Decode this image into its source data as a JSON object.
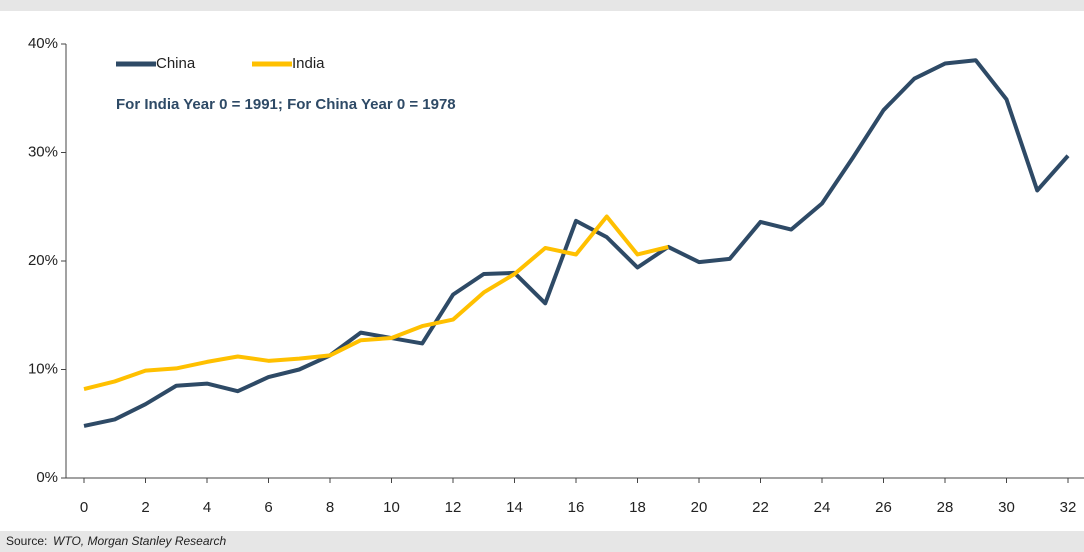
{
  "chart_data": {
    "type": "line",
    "annotation": "For India Year 0 = 1991; For China Year 0 = 1978",
    "source_label": "Source:",
    "source": "WTO, Morgan Stanley Research",
    "x": [
      0,
      1,
      2,
      3,
      4,
      5,
      6,
      7,
      8,
      9,
      10,
      11,
      12,
      13,
      14,
      15,
      16,
      17,
      18,
      19,
      20,
      21,
      22,
      23,
      24,
      25,
      26,
      27,
      28,
      29,
      30,
      31,
      32
    ],
    "series": [
      {
        "name": "China",
        "color": "#2e4a66",
        "values": [
          4.8,
          5.4,
          6.8,
          8.5,
          8.7,
          8.0,
          9.3,
          10.0,
          11.3,
          13.4,
          12.9,
          12.4,
          16.9,
          18.8,
          18.9,
          16.1,
          23.7,
          22.2,
          19.4,
          21.3,
          19.9,
          20.2,
          23.6,
          22.9,
          25.3,
          29.5,
          33.9,
          36.8,
          38.2,
          38.5,
          34.9,
          26.5,
          29.7
        ]
      },
      {
        "name": "India",
        "color": "#ffc000",
        "values": [
          8.2,
          8.9,
          9.9,
          10.1,
          10.7,
          11.2,
          10.8,
          11.0,
          11.3,
          12.7,
          12.9,
          14.0,
          14.6,
          17.1,
          18.8,
          21.2,
          20.6,
          24.1,
          20.6,
          21.3,
          null,
          null,
          null,
          null,
          null,
          null,
          null,
          null,
          null,
          null,
          null,
          null,
          null
        ]
      }
    ],
    "xlim": [
      0,
      32
    ],
    "xticks": [
      0,
      2,
      4,
      6,
      8,
      10,
      12,
      14,
      16,
      18,
      20,
      22,
      24,
      26,
      28,
      30,
      32
    ],
    "ylim": [
      0,
      40
    ],
    "yticks": [
      {
        "value": 0,
        "label": "0%"
      },
      {
        "value": 10,
        "label": "10%"
      },
      {
        "value": 20,
        "label": "20%"
      },
      {
        "value": 30,
        "label": "30%"
      },
      {
        "value": 40,
        "label": "40%"
      }
    ]
  }
}
